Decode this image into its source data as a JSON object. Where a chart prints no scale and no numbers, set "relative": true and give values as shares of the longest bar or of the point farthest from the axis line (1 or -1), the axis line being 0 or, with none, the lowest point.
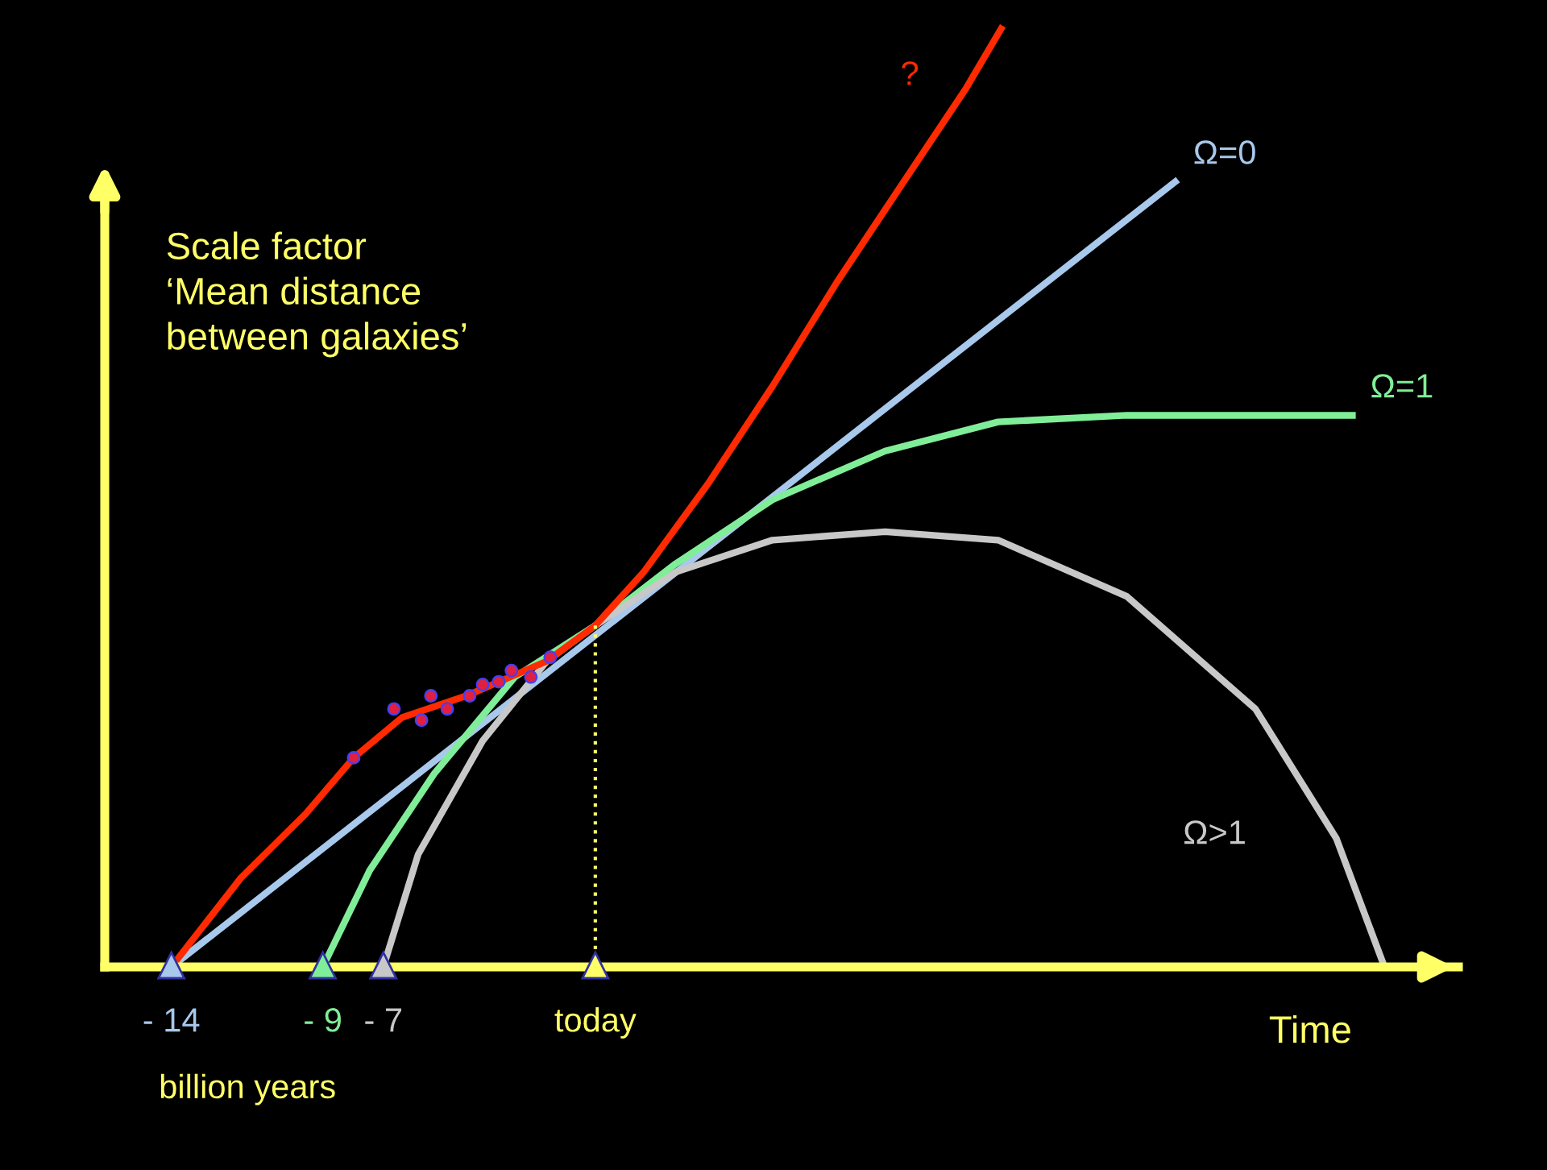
{
  "chart_data": {
    "type": "line",
    "relative": true,
    "ylabel": "Scale factor\n‘Mean distance\nbetween galaxies’",
    "xlabel": "Time",
    "annotations": [
      "billion years"
    ],
    "xlim": [
      -16.2,
      28.5
    ],
    "xticks": [
      {
        "value": -14,
        "label": "- 14"
      },
      {
        "value": -9,
        "label": "- 9"
      },
      {
        "value": -7,
        "label": "- 7"
      },
      {
        "value": 0,
        "label": "today"
      }
    ],
    "tick_labels": "x",
    "line_style": "solid",
    "ref_lines": [
      {
        "axis": "x",
        "value": 0,
        "color": "#ffff66",
        "line_style": "dotted"
      }
    ],
    "series": [
      {
        "name": "Ω=0",
        "color": "#a8c8ec",
        "x": [
          -14,
          19.15
        ],
        "values": [
          0,
          0.837
        ]
      },
      {
        "name": "Ω=1",
        "color": "#80ee98",
        "x": [
          -9,
          -7.45,
          -5.32,
          -2.66,
          0,
          2.66,
          5.85,
          9.57,
          13.3,
          17.55,
          25
        ],
        "values": [
          0,
          0.103,
          0.206,
          0.309,
          0.364,
          0.43,
          0.498,
          0.55,
          0.581,
          0.588,
          0.588
        ]
      },
      {
        "name": "Ω>1",
        "color": "#c8c8c8",
        "x": [
          -7,
          -5.85,
          -3.72,
          -1.6,
          0,
          2.66,
          5.85,
          9.57,
          13.3,
          17.55,
          21.8,
          24.47,
          26.06
        ],
        "values": [
          0,
          0.12,
          0.241,
          0.326,
          0.364,
          0.421,
          0.455,
          0.464,
          0.455,
          0.395,
          0.275,
          0.137,
          0
        ]
      },
      {
        "name": "?",
        "color": "#ff2a00",
        "x": [
          -14,
          -11.7,
          -9.57,
          -7.98,
          -6.38,
          -4.26,
          -1.6,
          0,
          1.6,
          3.72,
          5.85,
          7.98,
          10.1,
          12.23,
          13.4
        ],
        "values": [
          0,
          0.095,
          0.163,
          0.223,
          0.266,
          0.289,
          0.326,
          0.364,
          0.421,
          0.515,
          0.619,
          0.73,
          0.833,
          0.936,
          1
        ]
      },
      {
        "type": "scatter",
        "marker": "circle",
        "color": "#e02040",
        "x": [
          -7.98,
          -6.65,
          -5.74,
          -5.43,
          -4.89,
          -4.15,
          -3.72,
          -3.19,
          -2.77,
          -2.13,
          -1.49
        ],
        "values": [
          0.223,
          0.275,
          0.263,
          0.289,
          0.275,
          0.289,
          0.301,
          0.304,
          0.316,
          0.309,
          0.33
        ]
      }
    ]
  }
}
